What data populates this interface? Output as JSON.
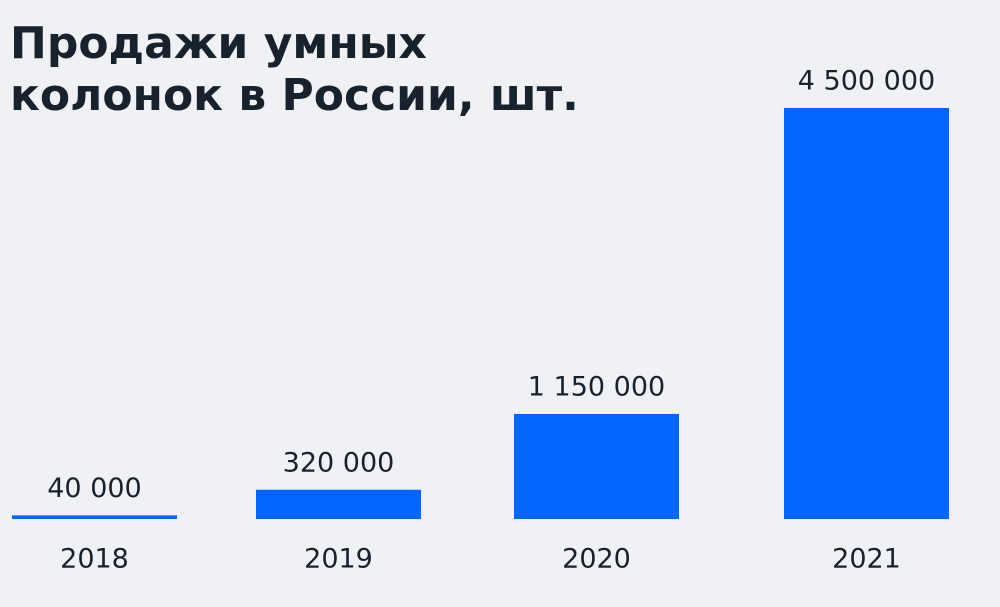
{
  "chart_data": {
    "type": "bar",
    "title": "Продажи умных колонок в России, шт.",
    "categories": [
      "2018",
      "2019",
      "2020",
      "2021"
    ],
    "values": [
      40000,
      320000,
      1150000,
      4500000
    ],
    "value_labels": [
      "40 000",
      "320 000",
      "1 150 000",
      "4 500 000"
    ],
    "color": "#0066ff"
  }
}
